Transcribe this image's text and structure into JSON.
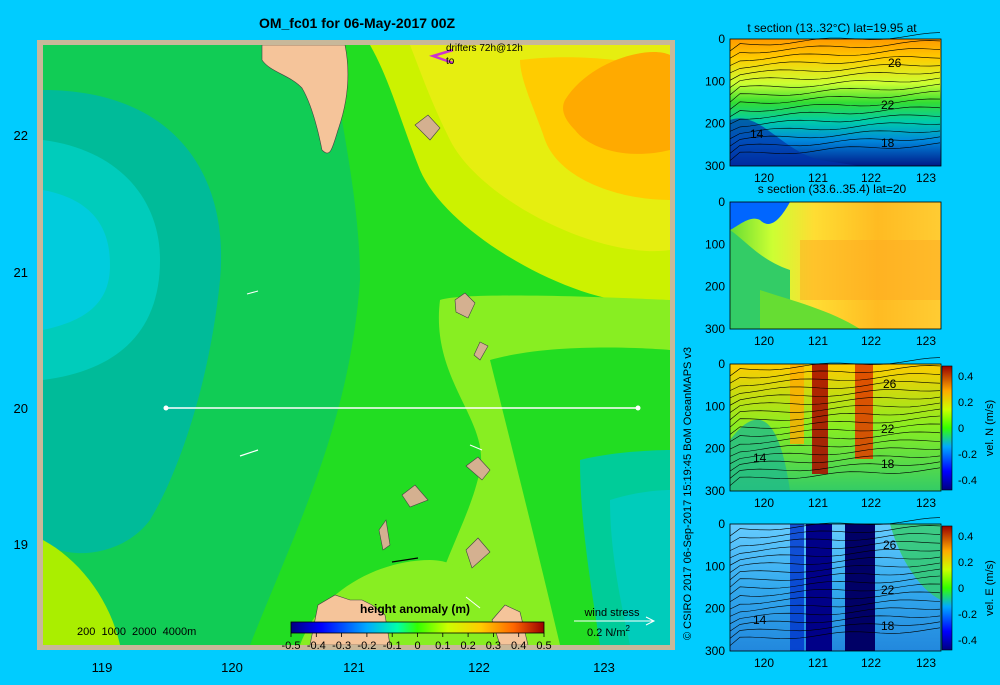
{
  "main_map": {
    "title": "OM_fc01 for 06-May-2017 00Z",
    "drifters_label": "drifters 72h@12h",
    "drifters_to": "to",
    "x_ticks": [
      "119",
      "120",
      "121",
      "122",
      "123"
    ],
    "y_ticks": [
      "22",
      "21",
      "20",
      "19"
    ],
    "depth_legend": "200  1000  2000  4000m",
    "wind_stress_label": "wind stress",
    "wind_stress_value": "0.2 N/m",
    "wind_stress_sup": "2",
    "section_line_lat": 20,
    "colors": {
      "background": "#00ccff",
      "land": "#f5c49a",
      "frame": "#c8b89a",
      "section_line": "#ffffff",
      "drifter": "#cc33cc"
    }
  },
  "colorbar": {
    "title": "height anomaly (m)",
    "ticks": [
      "-0.5",
      "-0.4",
      "-0.3",
      "-0.2",
      "-0.1",
      "0",
      "0.1",
      "0.2",
      "0.3",
      "0.4",
      "0.5"
    ],
    "range": [
      -0.5,
      0.5
    ]
  },
  "credit": "© CSIRO 2017   06-Sep-2017 15:19:45 BoM OceanMAPS v3",
  "chart_data": [
    {
      "type": "heatmap",
      "title": "t section (13..32°C) lat=19.95 at",
      "x_ticks": [
        "120",
        "121",
        "122",
        "123"
      ],
      "y_ticks": [
        "0",
        "100",
        "200",
        "300"
      ],
      "ylim": [
        300,
        0
      ],
      "contour_labels": [
        "26",
        "22",
        "18",
        "14"
      ]
    },
    {
      "type": "heatmap",
      "title": "s section (33.6..35.4) lat=20",
      "x_ticks": [
        "120",
        "121",
        "122",
        "123"
      ],
      "y_ticks": [
        "0",
        "100",
        "200",
        "300"
      ],
      "ylim": [
        300,
        0
      ]
    },
    {
      "type": "heatmap",
      "title": "",
      "x_ticks": [
        "120",
        "121",
        "122",
        "123"
      ],
      "y_ticks": [
        "0",
        "100",
        "200",
        "300"
      ],
      "ylim": [
        300,
        0
      ],
      "contour_labels": [
        "26",
        "22",
        "18",
        "14"
      ],
      "colorbar_label": "vel. N (m/s)",
      "colorbar_ticks": [
        "0.4",
        "0.2",
        "0",
        "-0.2",
        "-0.4"
      ]
    },
    {
      "type": "heatmap",
      "title": "",
      "x_ticks": [
        "120",
        "121",
        "122",
        "123"
      ],
      "y_ticks": [
        "0",
        "100",
        "200",
        "300"
      ],
      "ylim": [
        300,
        0
      ],
      "contour_labels": [
        "26",
        "22",
        "18",
        "14"
      ],
      "colorbar_label": "vel. E (m/s)",
      "colorbar_ticks": [
        "0.4",
        "0.2",
        "0",
        "-0.2",
        "-0.4"
      ]
    }
  ]
}
